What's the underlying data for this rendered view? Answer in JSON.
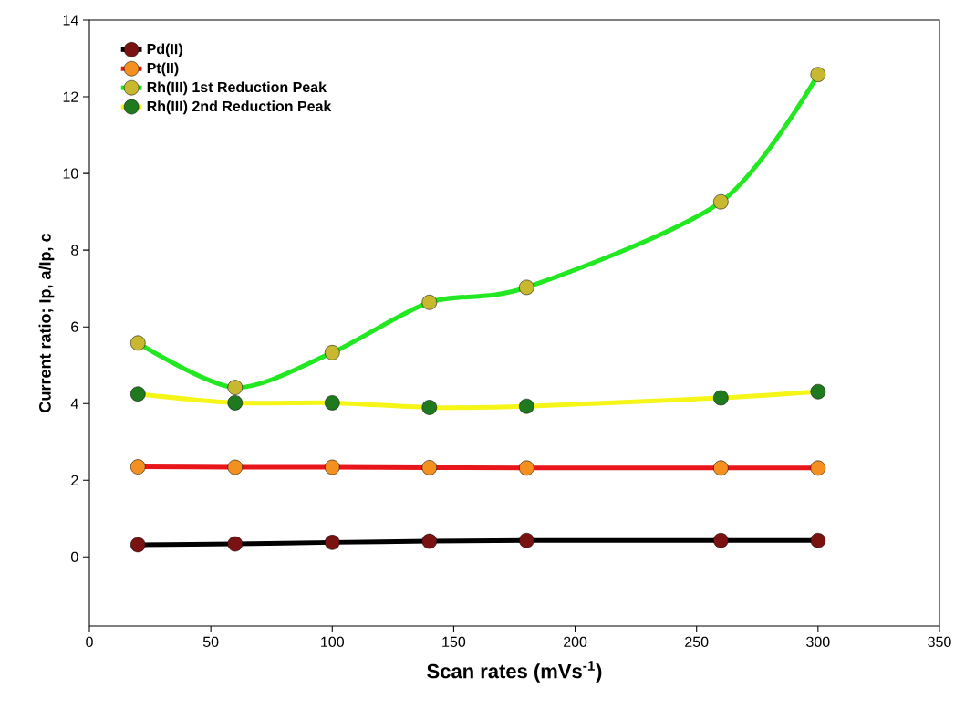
{
  "chart_data": {
    "type": "line",
    "xlabel": "Scan rates (mVs$^{-1}$)",
    "ylabel": "Current ratio; Ip, a/Ip, c",
    "x": [
      20,
      60,
      100,
      140,
      180,
      260,
      300
    ],
    "series": [
      {
        "name": "Pd(II)",
        "color": "#000000",
        "colors": [
          "#7a1212",
          "#7a1212",
          "#7a1212",
          "#7a1212",
          "#7a1212",
          "#7a1212",
          "#7a1212"
        ],
        "values": [
          0.32,
          0.34,
          0.38,
          0.41,
          0.43,
          0.43,
          0.43
        ]
      },
      {
        "name": "Pt(II)",
        "color": "#e8161a",
        "colors": [
          "#f39020",
          "#f39020",
          "#f39020",
          "#f39020",
          "#f39020",
          "#f39020",
          "#f39020"
        ],
        "values": [
          2.35,
          2.34,
          2.34,
          2.33,
          2.32,
          2.32,
          2.32
        ]
      },
      {
        "name": "Rh(III) 1st Reduction Peak",
        "color": "#22e822",
        "colors": [
          "#c8b830",
          "#c8b830",
          "#c8b830",
          "#c8b830",
          "#c8b830",
          "#c8b830",
          "#c8b830"
        ],
        "values": [
          5.58,
          4.42,
          5.33,
          6.64,
          7.03,
          9.26,
          12.58
        ]
      },
      {
        "name": "Rh(III) 2nd Reduction Peak",
        "color": "#f5f518",
        "colors": [
          "#1f7a1f",
          "#1f7a1f",
          "#1f7a1f",
          "#1f7a1f",
          "#1f7a1f",
          "#1f7a1f",
          "#1f7a1f"
        ],
        "values": [
          4.25,
          4.02,
          4.02,
          3.9,
          3.93,
          4.15,
          4.31
        ]
      }
    ],
    "xlim": [
      0,
      350
    ],
    "ylim": [
      -1.8,
      14
    ],
    "xticks": [
      0,
      50,
      100,
      150,
      200,
      250,
      300,
      350
    ],
    "yticks": [
      0,
      2,
      4,
      6,
      8,
      10,
      12,
      14
    ],
    "legend": "top left",
    "marker": "circle",
    "line_style": "solid",
    "grid": false
  }
}
